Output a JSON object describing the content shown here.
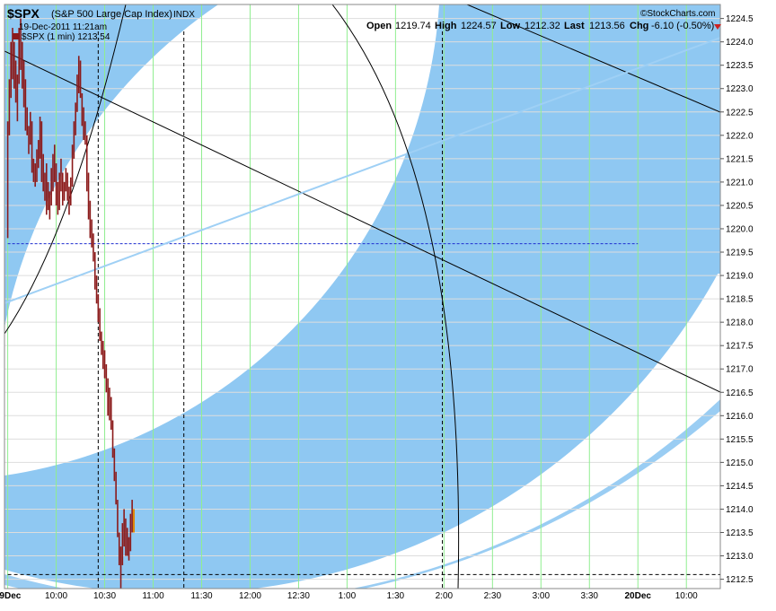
{
  "header": {
    "symbol": "$SPX",
    "name": "(S&P 500 Large Cap Index)",
    "exchange": "INDX",
    "datetime": "19-Dec-2011 11:21am",
    "series_label": "$SPX (1 min) 1213.54",
    "brand": "©StockCharts.com",
    "open_label": "Open",
    "open_value": "1219.74",
    "high_label": "High",
    "high_value": "1224.57",
    "low_label": "Low",
    "low_value": "1212.32",
    "last_label": "Last",
    "last_value": "1213.56",
    "chg_label": "Chg",
    "chg_value": "-6.10 (-0.50%)"
  },
  "colors": {
    "arc_band": "#8fc8f2",
    "up_bar": "#8b1a1a",
    "down_bar": "#8b1a1a",
    "trend_black": "#000000",
    "trend_light": "#9fd0f5",
    "grid_vertical": "#90ee90",
    "grid_horizontal": "#dddddd",
    "ref_blue": "#1f2fcf"
  },
  "chart_data": {
    "type": "line",
    "style": "ohlc-bars",
    "title": "$SPX (S&P 500 Large Cap Index) INDX",
    "xlabel": "",
    "ylabel": "",
    "ylim": [
      1212.3,
      1224.8
    ],
    "y_ticks": [
      "1212.5",
      "1213.0",
      "1213.5",
      "1214.0",
      "1214.5",
      "1215.0",
      "1215.5",
      "1216.0",
      "1216.5",
      "1217.0",
      "1217.5",
      "1218.0",
      "1218.5",
      "1219.0",
      "1219.5",
      "1220.0",
      "1220.5",
      "1221.0",
      "1221.5",
      "1222.0",
      "1222.5",
      "1223.0",
      "1223.5",
      "1224.0",
      "1224.5"
    ],
    "x_ticks": [
      "19Dec",
      "10:00",
      "10:30",
      "11:00",
      "11:30",
      "12:00",
      "12:30",
      "1:00",
      "1:30",
      "2:00",
      "2:30",
      "3:00",
      "3:30",
      "20Dec",
      "10:00"
    ],
    "x_tick_minutes": [
      0,
      30,
      60,
      90,
      120,
      150,
      180,
      210,
      240,
      270,
      300,
      330,
      360,
      390,
      420
    ],
    "x_range_minutes": [
      -2,
      441
    ],
    "grid": true,
    "series": [
      {
        "values": [
          {
            "t": 0,
            "h": 1222.3,
            "l": 1219.8
          },
          {
            "t": 1,
            "h": 1223.2,
            "l": 1222.0
          },
          {
            "t": 2,
            "h": 1224.0,
            "l": 1222.8
          },
          {
            "t": 3,
            "h": 1224.3,
            "l": 1223.2
          },
          {
            "t": 4,
            "h": 1224.0,
            "l": 1223.0
          },
          {
            "t": 5,
            "h": 1223.6,
            "l": 1222.7
          },
          {
            "t": 6,
            "h": 1223.3,
            "l": 1222.3
          },
          {
            "t": 7,
            "h": 1224.3,
            "l": 1223.1
          },
          {
            "t": 8,
            "h": 1224.5,
            "l": 1223.4
          },
          {
            "t": 9,
            "h": 1224.0,
            "l": 1223.0
          },
          {
            "t": 10,
            "h": 1223.6,
            "l": 1222.6
          },
          {
            "t": 11,
            "h": 1223.2,
            "l": 1222.1
          },
          {
            "t": 12,
            "h": 1222.6,
            "l": 1222.0
          },
          {
            "t": 13,
            "h": 1222.2,
            "l": 1221.6
          },
          {
            "t": 14,
            "h": 1222.5,
            "l": 1221.8
          },
          {
            "t": 15,
            "h": 1222.3,
            "l": 1221.2
          },
          {
            "t": 16,
            "h": 1221.5,
            "l": 1221.0
          },
          {
            "t": 17,
            "h": 1221.4,
            "l": 1220.9
          },
          {
            "t": 18,
            "h": 1221.7,
            "l": 1221.0
          },
          {
            "t": 19,
            "h": 1221.9,
            "l": 1221.3
          },
          {
            "t": 20,
            "h": 1222.4,
            "l": 1221.5
          },
          {
            "t": 21,
            "h": 1222.3,
            "l": 1221.0
          },
          {
            "t": 22,
            "h": 1221.6,
            "l": 1220.8
          },
          {
            "t": 23,
            "h": 1221.2,
            "l": 1220.6
          },
          {
            "t": 24,
            "h": 1221.4,
            "l": 1220.3
          },
          {
            "t": 25,
            "h": 1221.0,
            "l": 1220.4
          },
          {
            "t": 26,
            "h": 1220.8,
            "l": 1220.2
          },
          {
            "t": 27,
            "h": 1221.3,
            "l": 1220.5
          },
          {
            "t": 28,
            "h": 1221.6,
            "l": 1220.8
          },
          {
            "t": 29,
            "h": 1221.8,
            "l": 1221.0
          },
          {
            "t": 30,
            "h": 1221.4,
            "l": 1220.5
          },
          {
            "t": 31,
            "h": 1221.0,
            "l": 1220.3
          },
          {
            "t": 32,
            "h": 1221.2,
            "l": 1220.4
          },
          {
            "t": 33,
            "h": 1221.5,
            "l": 1220.8
          },
          {
            "t": 34,
            "h": 1221.2,
            "l": 1220.5
          },
          {
            "t": 35,
            "h": 1221.0,
            "l": 1220.6
          },
          {
            "t": 36,
            "h": 1221.3,
            "l": 1220.8
          },
          {
            "t": 37,
            "h": 1221.2,
            "l": 1220.6
          },
          {
            "t": 38,
            "h": 1220.9,
            "l": 1220.3
          },
          {
            "t": 39,
            "h": 1221.1,
            "l": 1220.5
          },
          {
            "t": 40,
            "h": 1221.8,
            "l": 1220.9
          },
          {
            "t": 41,
            "h": 1222.3,
            "l": 1221.5
          },
          {
            "t": 42,
            "h": 1222.7,
            "l": 1222.0
          },
          {
            "t": 43,
            "h": 1223.3,
            "l": 1222.5
          },
          {
            "t": 44,
            "h": 1223.7,
            "l": 1222.9
          },
          {
            "t": 45,
            "h": 1223.6,
            "l": 1222.8
          },
          {
            "t": 46,
            "h": 1222.9,
            "l": 1222.2
          },
          {
            "t": 47,
            "h": 1222.6,
            "l": 1221.9
          },
          {
            "t": 48,
            "h": 1222.3,
            "l": 1221.8
          },
          {
            "t": 49,
            "h": 1222.0,
            "l": 1220.8
          },
          {
            "t": 50,
            "h": 1221.2,
            "l": 1220.2
          },
          {
            "t": 51,
            "h": 1220.6,
            "l": 1219.8
          },
          {
            "t": 52,
            "h": 1220.2,
            "l": 1219.6
          },
          {
            "t": 53,
            "h": 1219.9,
            "l": 1219.3
          },
          {
            "t": 54,
            "h": 1219.5,
            "l": 1218.7
          },
          {
            "t": 55,
            "h": 1219.0,
            "l": 1218.4
          },
          {
            "t": 56,
            "h": 1218.6,
            "l": 1218.0
          },
          {
            "t": 57,
            "h": 1218.3,
            "l": 1217.6
          },
          {
            "t": 58,
            "h": 1217.8,
            "l": 1217.3
          },
          {
            "t": 59,
            "h": 1217.6,
            "l": 1217.0
          },
          {
            "t": 60,
            "h": 1217.4,
            "l": 1216.8
          },
          {
            "t": 61,
            "h": 1217.1,
            "l": 1216.5
          },
          {
            "t": 62,
            "h": 1216.8,
            "l": 1216.0
          },
          {
            "t": 63,
            "h": 1216.6,
            "l": 1215.9
          },
          {
            "t": 64,
            "h": 1216.4,
            "l": 1215.7
          },
          {
            "t": 65,
            "h": 1215.9,
            "l": 1215.1
          },
          {
            "t": 66,
            "h": 1215.3,
            "l": 1214.6
          },
          {
            "t": 67,
            "h": 1214.8,
            "l": 1214.1
          },
          {
            "t": 68,
            "h": 1214.2,
            "l": 1213.4
          },
          {
            "t": 69,
            "h": 1213.5,
            "l": 1212.8
          },
          {
            "t": 70,
            "h": 1213.2,
            "l": 1212.3
          },
          {
            "t": 71,
            "h": 1213.7,
            "l": 1212.8
          },
          {
            "t": 72,
            "h": 1214.0,
            "l": 1213.2
          },
          {
            "t": 73,
            "h": 1213.8,
            "l": 1213.0
          },
          {
            "t": 74,
            "h": 1213.6,
            "l": 1213.0
          },
          {
            "t": 75,
            "h": 1213.4,
            "l": 1212.9
          },
          {
            "t": 76,
            "h": 1213.9,
            "l": 1213.1
          },
          {
            "t": 77,
            "h": 1214.2,
            "l": 1213.5
          },
          {
            "t": 78,
            "h": 1214.0,
            "l": 1213.5
          }
        ]
      }
    ]
  }
}
